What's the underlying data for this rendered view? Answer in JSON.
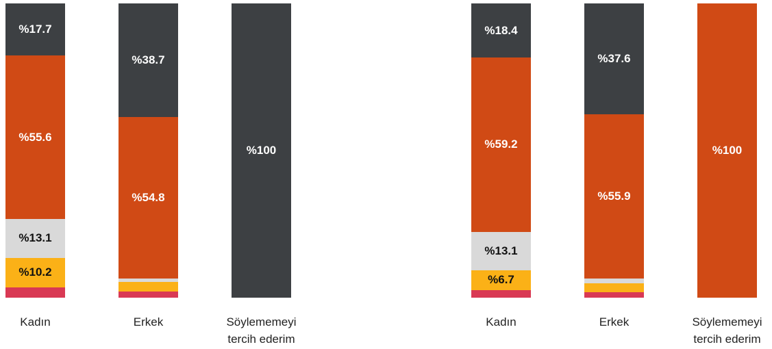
{
  "chart_data": [
    {
      "type": "stacked-bar",
      "categories": [
        "Kadın",
        "Erkek",
        "Söylememeyi tercih ederim"
      ],
      "ylim": [
        0,
        100
      ],
      "series": [
        {
          "color": "#d93954",
          "values": [
            3.4,
            2.0,
            0
          ],
          "value_labels": [
            null,
            null,
            null
          ]
        },
        {
          "color": "#fbb117",
          "values": [
            10.2,
            3.3,
            0
          ],
          "value_labels": [
            "%10.2",
            null,
            null
          ]
        },
        {
          "color": "#d9d9d9",
          "values": [
            13.1,
            1.2,
            0
          ],
          "value_labels": [
            "%13.1",
            null,
            null
          ]
        },
        {
          "color": "#d04a15",
          "values": [
            55.6,
            54.8,
            0
          ],
          "value_labels": [
            "%55.6",
            "%54.8",
            null
          ]
        },
        {
          "color": "#3d4043",
          "values": [
            17.7,
            38.7,
            100
          ],
          "value_labels": [
            "%17.7",
            "%38.7",
            "%100"
          ]
        }
      ]
    },
    {
      "type": "stacked-bar",
      "categories": [
        "Kadın",
        "Erkek",
        "Söylememeyi tercih ederim"
      ],
      "ylim": [
        0,
        100
      ],
      "series": [
        {
          "color": "#d93954",
          "values": [
            2.6,
            1.9,
            0
          ],
          "value_labels": [
            null,
            null,
            null
          ]
        },
        {
          "color": "#fbb117",
          "values": [
            6.7,
            3.0,
            0
          ],
          "value_labels": [
            "%6.7",
            null,
            null
          ]
        },
        {
          "color": "#d9d9d9",
          "values": [
            13.1,
            1.6,
            0
          ],
          "value_labels": [
            "%13.1",
            null,
            null
          ]
        },
        {
          "color": "#d04a15",
          "values": [
            59.2,
            55.9,
            100
          ],
          "value_labels": [
            "%59.2",
            "%55.9",
            "%100"
          ]
        },
        {
          "color": "#3d4043",
          "values": [
            18.4,
            37.6,
            0
          ],
          "value_labels": [
            "%18.4",
            "%37.6",
            null
          ]
        }
      ]
    }
  ]
}
